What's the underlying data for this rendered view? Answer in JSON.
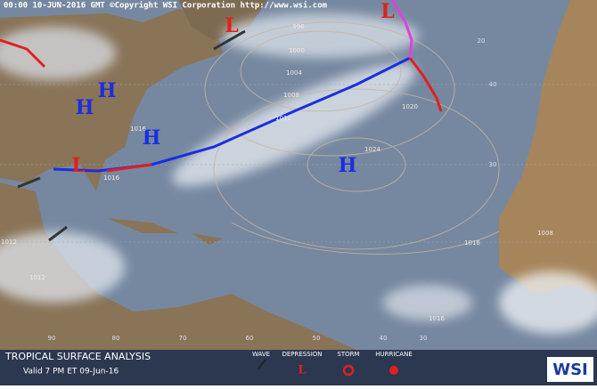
{
  "header": "00:00 10-JUN-2016 GMT ©Copyright WSI Corporation  http://www.wsi.com",
  "footer": {
    "title": "TROPICAL SURFACE ANALYSIS",
    "valid": "Valid 7 PM ET 09-Jun-16",
    "legend": [
      "WAVE",
      "DEPRESSION",
      "STORM",
      "HURRICANE"
    ],
    "logo": "WSI"
  },
  "pressure_centers": [
    "H",
    "H",
    "H",
    "H",
    "L",
    "L",
    "L"
  ],
  "isobar_labels": [
    "996",
    "1000",
    "1004",
    "1008",
    "1012",
    "1016",
    "1016",
    "1020",
    "1024",
    "1012",
    "1012",
    "1016",
    "1016",
    "1008"
  ],
  "grid_labels": [
    "40",
    "30",
    "20",
    "90",
    "80",
    "70",
    "60",
    "50",
    "40",
    "30"
  ]
}
